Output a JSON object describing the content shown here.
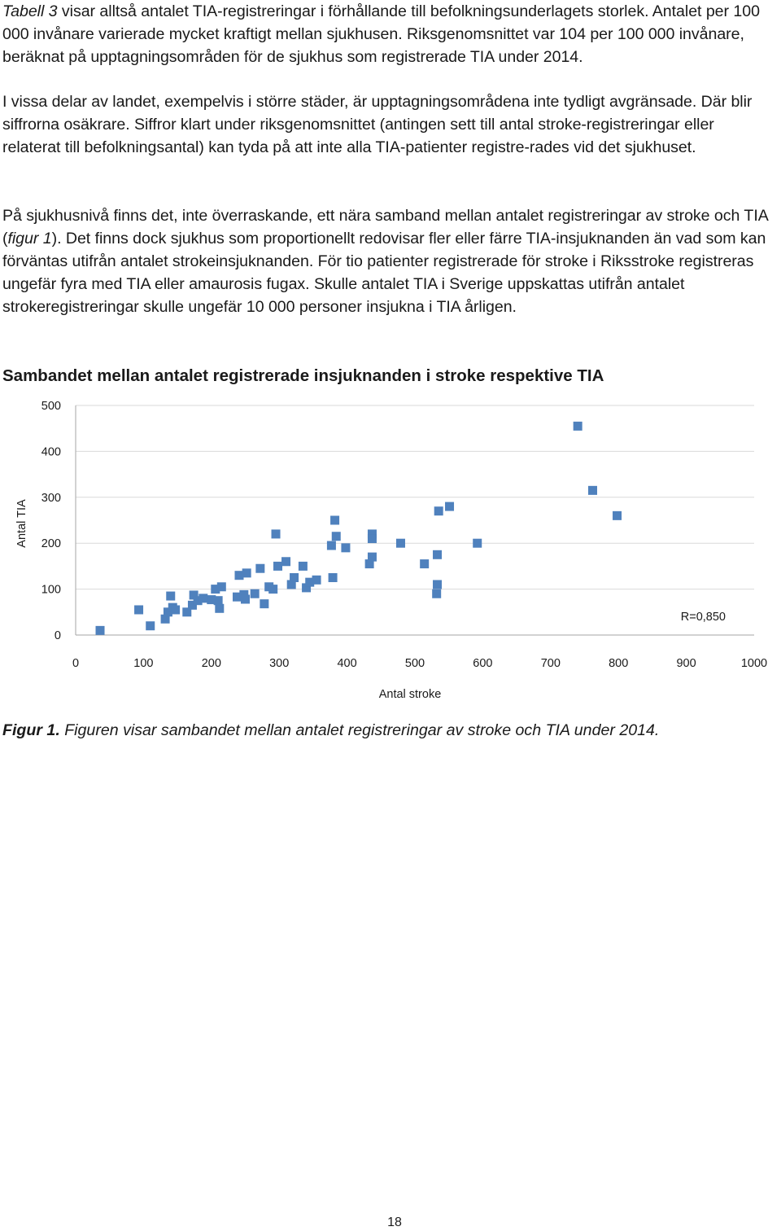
{
  "paragraphs": {
    "p1_ref": "Tabell 3",
    "p1_text": " visar alltså antalet TIA-registreringar i förhållande till befolkningsunderlagets storlek. Antalet per 100 000 invånare varierade mycket kraftigt mellan sjukhusen. Riksgenomsnittet var 104 per 100 000 invånare, beräknat på upptagningsområden för de sjukhus som registrerade TIA under 2014.",
    "p2_text": "I vissa delar av landet, exempelvis i större städer, är upptagningsområdena inte tydligt avgränsade. Där blir siffrorna osäkrare. Siffror klart under riksgenomsnittet (antingen sett till antal stroke-registreringar eller relaterat till befolkningsantal) kan tyda på att inte alla TIA-patienter registre-rades vid det sjukhuset.",
    "p3_before": "På sjukhusnivå finns det, inte överraskande, ett nära samband mellan antalet registreringar av stroke och TIA (",
    "p3_ref": "figur 1",
    "p3_after": "). Det finns dock sjukhus som proportionellt redovisar fler eller färre TIA-insjuknanden än vad som kan förväntas utifrån antalet strokeinsjuknanden. För tio patienter registrerade för stroke i Riksstroke registreras ungefär fyra med TIA eller amaurosis fugax. Skulle antalet TIA i Sverige uppskattas utifrån antalet strokeregistreringar skulle ungefär 10 000 personer insjukna i TIA årligen."
  },
  "chart_heading": "Sambandet mellan antalet registrerade insjuknanden i stroke respektive TIA",
  "caption": {
    "label": "Figur 1.",
    "text": " Figuren visar sambandet mellan antalet registreringar av stroke och TIA under 2014."
  },
  "page_number": "18",
  "colors": {
    "marker": "#4f81bd",
    "grid": "#d9d9d9",
    "axis": "#a6a6a6"
  },
  "chart_data": {
    "type": "scatter",
    "title": "Sambandet mellan antalet registrerade insjuknanden i stroke respektive TIA",
    "xlabel": "Antal stroke",
    "ylabel": "Antal TIA",
    "xlim": [
      0,
      1000
    ],
    "ylim": [
      0,
      500
    ],
    "x_ticks": [
      0,
      100,
      200,
      300,
      400,
      500,
      600,
      700,
      800,
      900,
      1000
    ],
    "y_ticks": [
      0,
      100,
      200,
      300,
      400,
      500
    ],
    "grid": "horizontal",
    "annotation": "R=0,850",
    "series": [
      {
        "marker": "square",
        "points": [
          [
            36,
            10
          ],
          [
            93,
            55
          ],
          [
            110,
            20
          ],
          [
            132,
            35
          ],
          [
            136,
            50
          ],
          [
            140,
            85
          ],
          [
            143,
            60
          ],
          [
            147,
            55
          ],
          [
            164,
            50
          ],
          [
            172,
            65
          ],
          [
            174,
            87
          ],
          [
            180,
            75
          ],
          [
            188,
            80
          ],
          [
            200,
            77
          ],
          [
            206,
            100
          ],
          [
            210,
            75
          ],
          [
            212,
            58
          ],
          [
            215,
            105
          ],
          [
            238,
            83
          ],
          [
            248,
            88
          ],
          [
            250,
            78
          ],
          [
            264,
            90
          ],
          [
            241,
            130
          ],
          [
            252,
            135
          ],
          [
            272,
            145
          ],
          [
            278,
            68
          ],
          [
            285,
            105
          ],
          [
            291,
            100
          ],
          [
            295,
            220
          ],
          [
            298,
            150
          ],
          [
            310,
            160
          ],
          [
            318,
            110
          ],
          [
            322,
            125
          ],
          [
            335,
            150
          ],
          [
            340,
            103
          ],
          [
            345,
            115
          ],
          [
            355,
            120
          ],
          [
            377,
            195
          ],
          [
            379,
            125
          ],
          [
            382,
            250
          ],
          [
            384,
            215
          ],
          [
            398,
            190
          ],
          [
            433,
            155
          ],
          [
            437,
            220
          ],
          [
            437,
            210
          ],
          [
            437,
            170
          ],
          [
            479,
            200
          ],
          [
            514,
            155
          ],
          [
            532,
            90
          ],
          [
            533,
            110
          ],
          [
            533,
            175
          ],
          [
            535,
            270
          ],
          [
            551,
            280
          ],
          [
            592,
            200
          ],
          [
            740,
            455
          ],
          [
            762,
            315
          ],
          [
            798,
            260
          ]
        ]
      }
    ]
  }
}
